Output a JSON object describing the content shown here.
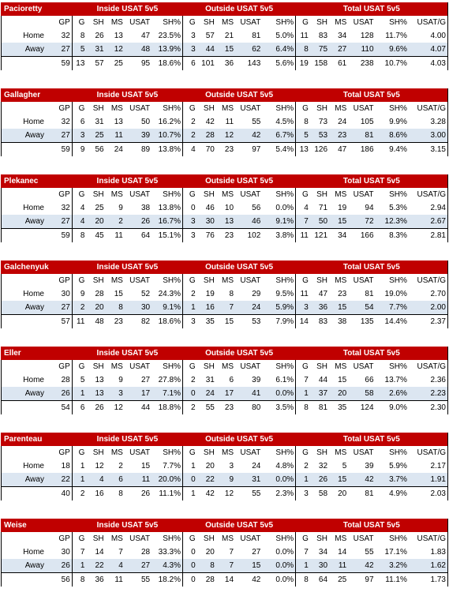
{
  "sections": [
    "Inside USAT 5v5",
    "Outside USAT 5v5",
    "Total USAT 5v5"
  ],
  "columns": [
    "GP",
    "G",
    "SH",
    "MS",
    "USAT",
    "SH%",
    "G",
    "SH",
    "MS",
    "USAT",
    "SH%",
    "G",
    "SH",
    "MS",
    "USAT",
    "SH%",
    "USAT/G"
  ],
  "players": [
    {
      "name": "Pacioretty",
      "rows": [
        {
          "label": "Home",
          "cells": [
            "32",
            "8",
            "26",
            "13",
            "47",
            "23.5%",
            "3",
            "57",
            "21",
            "81",
            "5.0%",
            "11",
            "83",
            "34",
            "128",
            "11.7%",
            "4.00"
          ]
        },
        {
          "label": "Away",
          "cells": [
            "27",
            "5",
            "31",
            "12",
            "48",
            "13.9%",
            "3",
            "44",
            "15",
            "62",
            "6.4%",
            "8",
            "75",
            "27",
            "110",
            "9.6%",
            "4.07"
          ]
        },
        {
          "label": "",
          "cells": [
            "59",
            "13",
            "57",
            "25",
            "95",
            "18.6%",
            "6",
            "101",
            "36",
            "143",
            "5.6%",
            "19",
            "158",
            "61",
            "238",
            "10.7%",
            "4.03"
          ]
        }
      ]
    },
    {
      "name": "Gallagher",
      "rows": [
        {
          "label": "Home",
          "cells": [
            "32",
            "6",
            "31",
            "13",
            "50",
            "16.2%",
            "2",
            "42",
            "11",
            "55",
            "4.5%",
            "8",
            "73",
            "24",
            "105",
            "9.9%",
            "3.28"
          ]
        },
        {
          "label": "Away",
          "cells": [
            "27",
            "3",
            "25",
            "11",
            "39",
            "10.7%",
            "2",
            "28",
            "12",
            "42",
            "6.7%",
            "5",
            "53",
            "23",
            "81",
            "8.6%",
            "3.00"
          ]
        },
        {
          "label": "",
          "cells": [
            "59",
            "9",
            "56",
            "24",
            "89",
            "13.8%",
            "4",
            "70",
            "23",
            "97",
            "5.4%",
            "13",
            "126",
            "47",
            "186",
            "9.4%",
            "3.15"
          ]
        }
      ]
    },
    {
      "name": "Plekanec",
      "rows": [
        {
          "label": "Home",
          "cells": [
            "32",
            "4",
            "25",
            "9",
            "38",
            "13.8%",
            "0",
            "46",
            "10",
            "56",
            "0.0%",
            "4",
            "71",
            "19",
            "94",
            "5.3%",
            "2.94"
          ]
        },
        {
          "label": "Away",
          "cells": [
            "27",
            "4",
            "20",
            "2",
            "26",
            "16.7%",
            "3",
            "30",
            "13",
            "46",
            "9.1%",
            "7",
            "50",
            "15",
            "72",
            "12.3%",
            "2.67"
          ]
        },
        {
          "label": "",
          "cells": [
            "59",
            "8",
            "45",
            "11",
            "64",
            "15.1%",
            "3",
            "76",
            "23",
            "102",
            "3.8%",
            "11",
            "121",
            "34",
            "166",
            "8.3%",
            "2.81"
          ]
        }
      ]
    },
    {
      "name": "Galchenyuk",
      "rows": [
        {
          "label": "Home",
          "cells": [
            "30",
            "9",
            "28",
            "15",
            "52",
            "24.3%",
            "2",
            "19",
            "8",
            "29",
            "9.5%",
            "11",
            "47",
            "23",
            "81",
            "19.0%",
            "2.70"
          ]
        },
        {
          "label": "Away",
          "cells": [
            "27",
            "2",
            "20",
            "8",
            "30",
            "9.1%",
            "1",
            "16",
            "7",
            "24",
            "5.9%",
            "3",
            "36",
            "15",
            "54",
            "7.7%",
            "2.00"
          ]
        },
        {
          "label": "",
          "cells": [
            "57",
            "11",
            "48",
            "23",
            "82",
            "18.6%",
            "3",
            "35",
            "15",
            "53",
            "7.9%",
            "14",
            "83",
            "38",
            "135",
            "14.4%",
            "2.37"
          ]
        }
      ]
    },
    {
      "name": "Eller",
      "rows": [
        {
          "label": "Home",
          "cells": [
            "28",
            "5",
            "13",
            "9",
            "27",
            "27.8%",
            "2",
            "31",
            "6",
            "39",
            "6.1%",
            "7",
            "44",
            "15",
            "66",
            "13.7%",
            "2.36"
          ]
        },
        {
          "label": "Away",
          "cells": [
            "26",
            "1",
            "13",
            "3",
            "17",
            "7.1%",
            "0",
            "24",
            "17",
            "41",
            "0.0%",
            "1",
            "37",
            "20",
            "58",
            "2.6%",
            "2.23"
          ]
        },
        {
          "label": "",
          "cells": [
            "54",
            "6",
            "26",
            "12",
            "44",
            "18.8%",
            "2",
            "55",
            "23",
            "80",
            "3.5%",
            "8",
            "81",
            "35",
            "124",
            "9.0%",
            "2.30"
          ]
        }
      ]
    },
    {
      "name": "Parenteau",
      "rows": [
        {
          "label": "Home",
          "cells": [
            "18",
            "1",
            "12",
            "2",
            "15",
            "7.7%",
            "1",
            "20",
            "3",
            "24",
            "4.8%",
            "2",
            "32",
            "5",
            "39",
            "5.9%",
            "2.17"
          ]
        },
        {
          "label": "Away",
          "cells": [
            "22",
            "1",
            "4",
            "6",
            "11",
            "20.0%",
            "0",
            "22",
            "9",
            "31",
            "0.0%",
            "1",
            "26",
            "15",
            "42",
            "3.7%",
            "1.91"
          ]
        },
        {
          "label": "",
          "cells": [
            "40",
            "2",
            "16",
            "8",
            "26",
            "11.1%",
            "1",
            "42",
            "12",
            "55",
            "2.3%",
            "3",
            "58",
            "20",
            "81",
            "4.9%",
            "2.03"
          ]
        }
      ]
    },
    {
      "name": "Weise",
      "rows": [
        {
          "label": "Home",
          "cells": [
            "30",
            "7",
            "14",
            "7",
            "28",
            "33.3%",
            "0",
            "20",
            "7",
            "27",
            "0.0%",
            "7",
            "34",
            "14",
            "55",
            "17.1%",
            "1.83"
          ]
        },
        {
          "label": "Away",
          "cells": [
            "26",
            "1",
            "22",
            "4",
            "27",
            "4.3%",
            "0",
            "8",
            "7",
            "15",
            "0.0%",
            "1",
            "30",
            "11",
            "42",
            "3.2%",
            "1.62"
          ]
        },
        {
          "label": "",
          "cells": [
            "56",
            "8",
            "36",
            "11",
            "55",
            "18.2%",
            "0",
            "28",
            "14",
            "42",
            "0.0%",
            "8",
            "64",
            "25",
            "97",
            "11.1%",
            "1.73"
          ]
        }
      ]
    }
  ]
}
